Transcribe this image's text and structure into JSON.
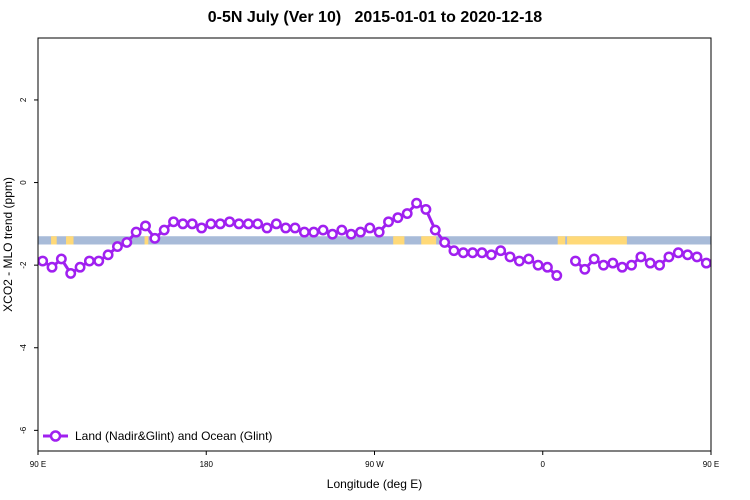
{
  "chart_data": {
    "type": "line",
    "title": "0-5N July (Ver 10)   2015-01-01 to 2020-12-18",
    "xlabel": "Longitude (deg E)",
    "ylabel": "XCO2 - MLO trend (ppm)",
    "xlim": [
      90,
      450
    ],
    "ylim": [
      -6.5,
      3.5
    ],
    "x_ticks": [
      {
        "value": 90,
        "label": "90 E"
      },
      {
        "value": 180,
        "label": "180"
      },
      {
        "value": 270,
        "label": "90 W"
      },
      {
        "value": 360,
        "label": "0"
      },
      {
        "value": 450,
        "label": "90 E"
      },
      {
        "value": 540,
        "label": "180"
      }
    ],
    "y_ticks": [
      {
        "value": 2,
        "label": "2"
      },
      {
        "value": 0,
        "label": "0"
      },
      {
        "value": -2,
        "label": "-2"
      },
      {
        "value": -4,
        "label": "-4"
      },
      {
        "value": -6,
        "label": "-6"
      }
    ],
    "legend": {
      "position": "bottom-left",
      "entries": [
        "Land (Nadir&Glint) and Ocean (Glint)"
      ]
    },
    "series": [
      {
        "name": "Land (Nadir&Glint) and Ocean (Glint)",
        "color": "#a020f0",
        "segments": [
          {
            "x": [
              92.5,
              97.5,
              102.5,
              107.5,
              112.5,
              117.5,
              122.5,
              127.5,
              132.5,
              137.5,
              142.5,
              147.5,
              152.5,
              157.5,
              162.5,
              167.5,
              172.5,
              177.5,
              182.5,
              187.5,
              192.5,
              197.5,
              202.5,
              207.5,
              212.5,
              217.5,
              222.5,
              227.5,
              232.5,
              237.5,
              242.5,
              247.5,
              252.5,
              257.5,
              262.5,
              267.5,
              272.5,
              277.5,
              282.5,
              287.5,
              292.5,
              297.5,
              302.5,
              307.5,
              312.5,
              317.5,
              322.5,
              327.5,
              332.5,
              337.5,
              342.5,
              347.5,
              352.5,
              357.5,
              362.5,
              367.5
            ],
            "y": [
              -1.9,
              -2.05,
              -1.85,
              -2.2,
              -2.05,
              -1.9,
              -1.9,
              -1.75,
              -1.55,
              -1.45,
              -1.2,
              -1.05,
              -1.35,
              -1.15,
              -0.95,
              -1.0,
              -1.0,
              -1.1,
              -1.0,
              -1.0,
              -0.95,
              -1.0,
              -1.0,
              -1.0,
              -1.1,
              -1.0,
              -1.1,
              -1.1,
              -1.2,
              -1.2,
              -1.15,
              -1.25,
              -1.15,
              -1.25,
              -1.2,
              -1.1,
              -1.2,
              -0.95,
              -0.85,
              -0.75,
              -0.5,
              -0.65,
              -1.15,
              -1.45,
              -1.65,
              -1.7,
              -1.7,
              -1.7,
              -1.75,
              -1.65,
              -1.8,
              -1.9,
              -1.85,
              -2.0,
              -2.05,
              -2.25
            ]
          },
          {
            "x": [
              377.5,
              382.5,
              387.5,
              392.5,
              397.5,
              402.5,
              407.5,
              412.5,
              417.5,
              422.5,
              427.5,
              432.5,
              437.5,
              442.5,
              447.5,
              452.5,
              457.5,
              462.5,
              467.5,
              472.5,
              477.5,
              482.5,
              487.5,
              492.5,
              497.5,
              502.5,
              507.5,
              512.5,
              517.5,
              522.5,
              527.5,
              532.5,
              537.5
            ],
            "y": [
              -1.9,
              -2.1,
              -1.85,
              -2.0,
              -1.95,
              -2.05,
              -2.0,
              -1.8,
              -1.95,
              -2.0,
              -1.8,
              -1.7,
              -1.75,
              -1.8,
              -1.95,
              -1.9,
              -2.05,
              -1.85,
              -2.2,
              -2.05,
              -1.9,
              -1.9,
              -1.7,
              -1.55,
              -1.45,
              -1.25,
              -1.05,
              -1.35,
              -1.15,
              -0.95,
              -1.05,
              -1.05,
              -1.1
            ]
          }
        ]
      }
    ],
    "surface_band": {
      "y_range": [
        -1.5,
        -1.3
      ],
      "colors": {
        "ocean": "#a8bbd8",
        "land": "#ffd978"
      },
      "land_spans": [
        [
          97,
          100
        ],
        [
          105,
          109
        ],
        [
          147,
          149
        ],
        [
          280,
          286
        ],
        [
          295,
          303
        ],
        [
          368,
          372
        ],
        [
          373,
          405
        ],
        [
          461,
          464
        ],
        [
          467,
          471
        ],
        [
          480,
          483
        ],
        [
          487,
          489
        ],
        [
          536,
          538
        ]
      ]
    }
  }
}
